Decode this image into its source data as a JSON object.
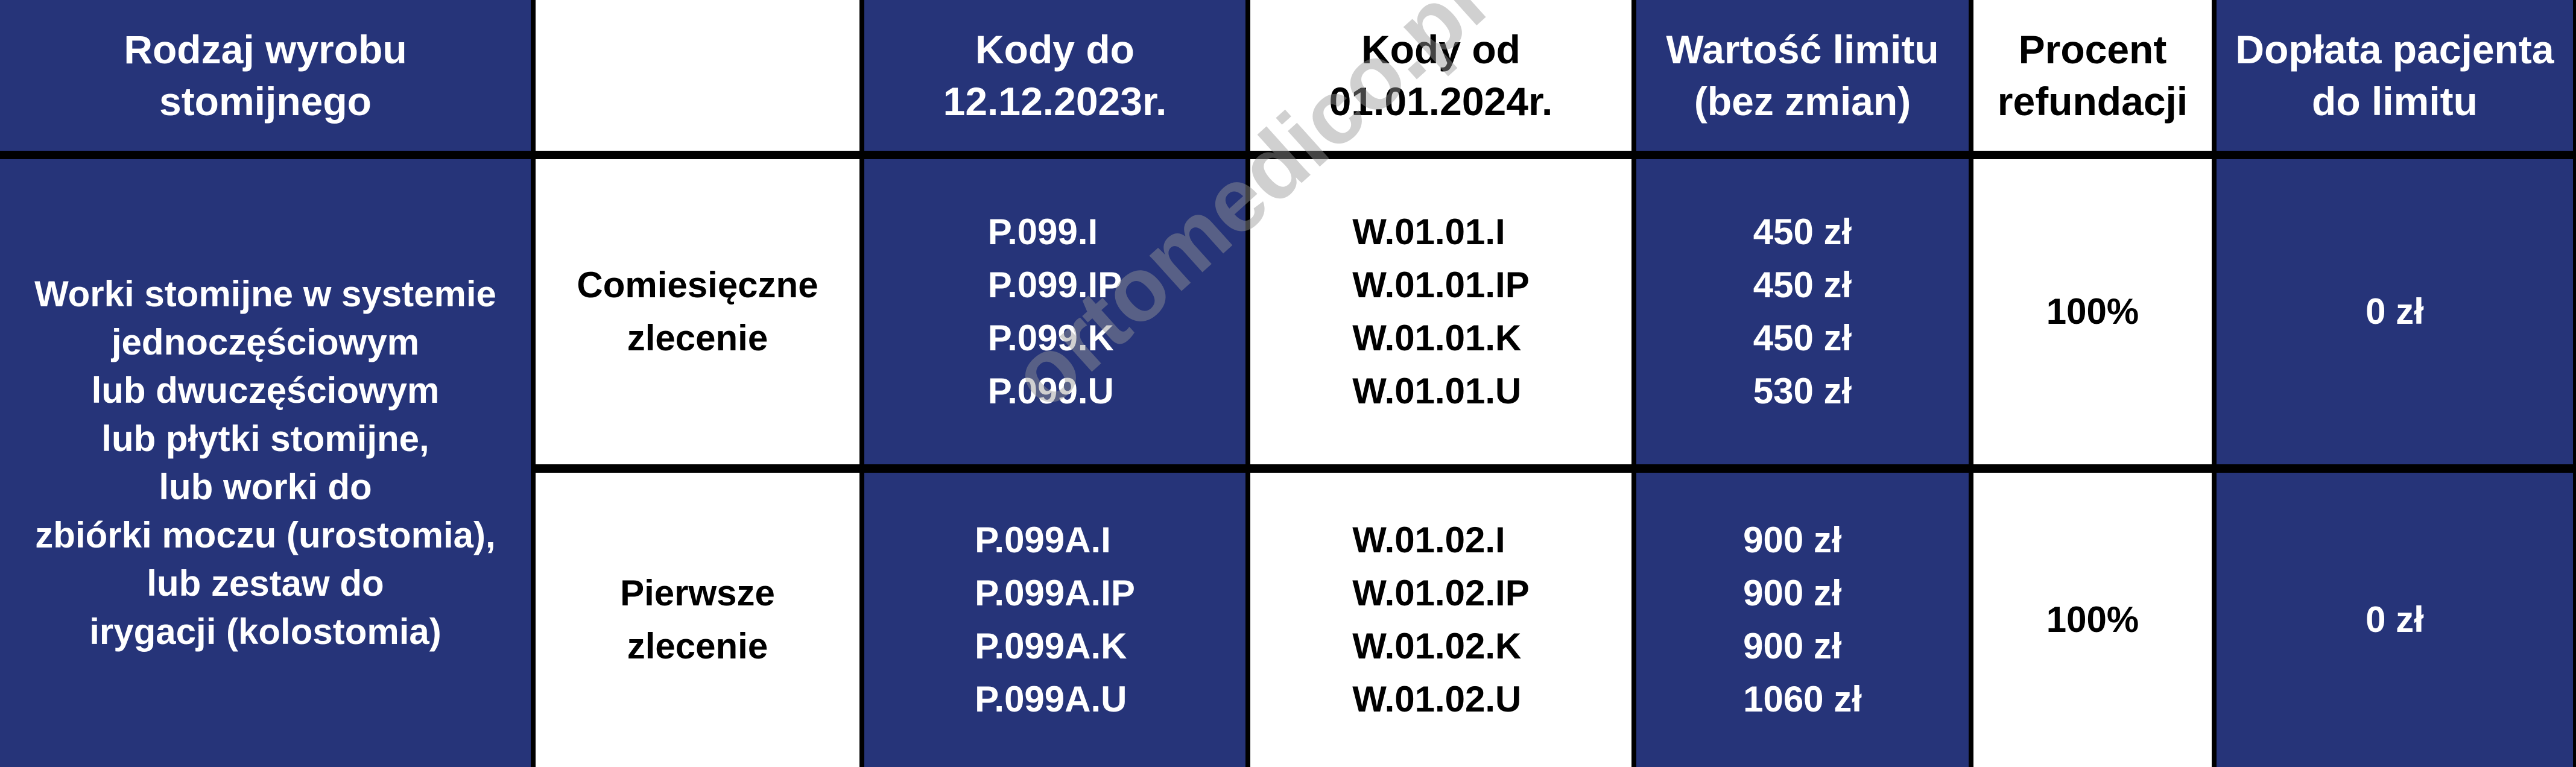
{
  "header": {
    "col1": [
      "Rodzaj wyrobu",
      "stomijnego"
    ],
    "col2": "",
    "col3": [
      "Kody do",
      "12.12.2023r."
    ],
    "col4": [
      "Kody od",
      "01.01.2024r."
    ],
    "col5": [
      "Wartość limitu",
      "(bez zmian)"
    ],
    "col6": [
      "Procent",
      "refundacji"
    ],
    "col7": [
      "Dopłata pacjenta",
      "do limitu"
    ]
  },
  "product": [
    "Worki stomijne w systemie",
    "jednoczęściowym",
    "lub dwuczęściowym",
    "lub płytki stomijne,",
    "lub worki do",
    "zbiórki moczu (urostomia),",
    "lub zestaw do",
    "irygacji (kolostomia)"
  ],
  "rows": [
    {
      "order": [
        "Comiesięczne",
        "zlecenie"
      ],
      "old_codes": [
        "P.099.I",
        "P.099.IP",
        "P.099.K",
        "P.099.U"
      ],
      "new_codes": [
        "W.01.01.I",
        "W.01.01.IP",
        "W.01.01.K",
        "W.01.01.U"
      ],
      "limits": [
        "450 zł",
        "450 zł",
        "450 zł",
        "530 zł"
      ],
      "refund": "100%",
      "copay": "0 zł"
    },
    {
      "order": [
        "Pierwsze",
        "zlecenie"
      ],
      "old_codes": [
        "P.099A.I",
        "P.099A.IP",
        "P.099A.K",
        "P.099A.U"
      ],
      "new_codes": [
        "W.01.02.I",
        "W.01.02.IP",
        "W.01.02.K",
        "W.01.02.U"
      ],
      "limits": [
        "900 zł",
        "900 zł",
        "900 zł",
        "1060 zł"
      ],
      "refund": "100%",
      "copay": "0 zł"
    }
  ],
  "watermark": "ortomedico.pl",
  "colors": {
    "blue": "#263479",
    "white": "#ffffff",
    "border": "#000000",
    "watermark": "#969696"
  }
}
